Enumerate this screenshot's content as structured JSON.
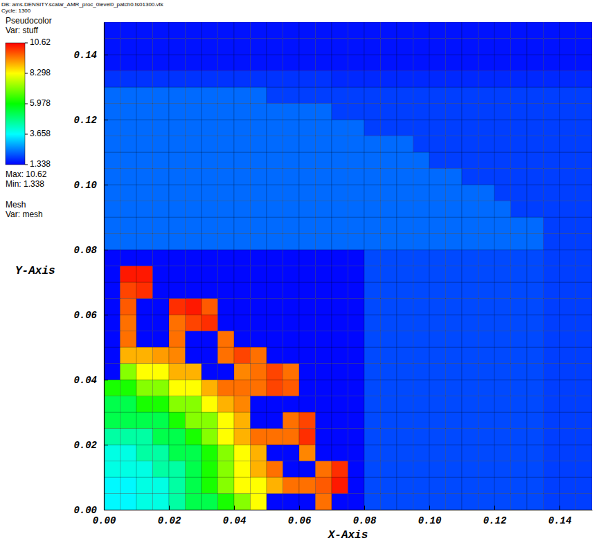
{
  "chart_data": {
    "type": "heatmap",
    "title": "DB: ams.DENSITY.scalar_AMR_proc_0level0_patch0.ts01300.vtk",
    "subtitle": "Cycle: 1300",
    "xlabel": "X-Axis",
    "ylabel": "Y-Axis",
    "xlim": [
      0,
      0.15
    ],
    "ylim": [
      0,
      0.15
    ],
    "xticks": [
      {
        "value": 0,
        "label": "0.00"
      },
      {
        "value": 0.02,
        "label": "0.02"
      },
      {
        "value": 0.04,
        "label": "0.04"
      },
      {
        "value": 0.06,
        "label": "0.06"
      },
      {
        "value": 0.08,
        "label": "0.08"
      },
      {
        "value": 0.1,
        "label": "0.10"
      },
      {
        "value": 0.12,
        "label": "0.12"
      },
      {
        "value": 0.14,
        "label": "0.14"
      }
    ],
    "yticks": [
      {
        "value": 0,
        "label": "0.00"
      },
      {
        "value": 0.02,
        "label": "0.02"
      },
      {
        "value": 0.04,
        "label": "0.04"
      },
      {
        "value": 0.06,
        "label": "0.06"
      },
      {
        "value": 0.08,
        "label": "0.08"
      },
      {
        "value": 0.1,
        "label": "0.10"
      },
      {
        "value": 0.12,
        "label": "0.12"
      },
      {
        "value": 0.14,
        "label": "0.14"
      }
    ],
    "colorbar": {
      "title": "Pseudocolor",
      "variable": "Var: stuff",
      "range": [
        1.338,
        10.62
      ],
      "ticks": [
        10.62,
        8.298,
        5.978,
        3.658,
        1.338
      ],
      "max_label": "Max: 10.62",
      "min_label": "Min: 1.338"
    },
    "mesh": {
      "title": "Mesh",
      "variable": "Var: mesh"
    },
    "x_edges": [
      0,
      0.005,
      0.01,
      0.015,
      0.02,
      0.025,
      0.03,
      0.035,
      0.04,
      0.045,
      0.05,
      0.055,
      0.06,
      0.065,
      0.07,
      0.075,
      0.08,
      0.085,
      0.09,
      0.095,
      0.1,
      0.105,
      0.11,
      0.115,
      0.12,
      0.125,
      0.13,
      0.135,
      0.14,
      0.145,
      0.15
    ],
    "y_edges": [
      0,
      0.005,
      0.01,
      0.015,
      0.02,
      0.025,
      0.03,
      0.035,
      0.04,
      0.045,
      0.05,
      0.055,
      0.06,
      0.065,
      0.07,
      0.075,
      0.08,
      0.085,
      0.09,
      0.095,
      0.1,
      0.105,
      0.11,
      0.115,
      0.12,
      0.125,
      0.13,
      0.135,
      0.14,
      0.145,
      0.15
    ],
    "z": [
      [
        3.6,
        3.6,
        3.9,
        3.9,
        4.5,
        5.3,
        5.3,
        6.2,
        7.2,
        8.3,
        1.4,
        1.4,
        1.4,
        9.6,
        1.4,
        1.4,
        2,
        2,
        2,
        2,
        2,
        2,
        2,
        2,
        2,
        2,
        2,
        1.9,
        1.9,
        1.9
      ],
      [
        3.6,
        3.6,
        3.9,
        3.9,
        4.5,
        5.3,
        6.2,
        7.2,
        8.3,
        8.3,
        9.0,
        9.6,
        9.6,
        9.8,
        10.4,
        1.4,
        2,
        2,
        2,
        2,
        2,
        2,
        2,
        2,
        2,
        2,
        2,
        1.9,
        1.9,
        1.9
      ],
      [
        3.9,
        3.9,
        3.9,
        4.5,
        4.5,
        5.3,
        6.2,
        7.2,
        8.3,
        9.0,
        9.6,
        1.4,
        1.4,
        9.6,
        10.2,
        1.4,
        2,
        2,
        2,
        2,
        2,
        2,
        2,
        2,
        2,
        2,
        2,
        1.9,
        1.9,
        1.9
      ],
      [
        3.9,
        3.9,
        4.5,
        4.5,
        5.3,
        5.3,
        6.2,
        7.2,
        8.3,
        9.0,
        1.4,
        1.4,
        9.4,
        1.4,
        1.4,
        1.4,
        2,
        2,
        2,
        2,
        2,
        2,
        2,
        2,
        2,
        2,
        2,
        1.9,
        1.9,
        1.9
      ],
      [
        4.5,
        4.5,
        4.5,
        5.3,
        5.3,
        6.2,
        7.2,
        8.3,
        9.0,
        9.6,
        9.6,
        9.6,
        10.2,
        1.4,
        1.4,
        1.4,
        2,
        2,
        2,
        2,
        2,
        2,
        2,
        2,
        2,
        2,
        2,
        1.9,
        1.9,
        1.9
      ],
      [
        5.3,
        5.3,
        5.3,
        5.3,
        6.2,
        7.2,
        7.2,
        8.3,
        9.0,
        1.4,
        1.4,
        9.6,
        10.0,
        1.4,
        1.4,
        1.4,
        2,
        2,
        2,
        2,
        2,
        2,
        2,
        2,
        2,
        2,
        2,
        1.9,
        1.9,
        1.9
      ],
      [
        5.3,
        5.3,
        6.2,
        6.2,
        7.2,
        7.2,
        8.3,
        9.0,
        9.4,
        1.4,
        1.4,
        1.4,
        1.4,
        1.4,
        1.4,
        1.4,
        2,
        2,
        2,
        2,
        2,
        2,
        2,
        2,
        2,
        2,
        2,
        1.9,
        1.9,
        1.9
      ],
      [
        6.2,
        6.2,
        7.2,
        7.2,
        8.3,
        8.3,
        9.0,
        9.6,
        9.6,
        9.6,
        10.0,
        9.8,
        1.4,
        1.4,
        1.4,
        1.4,
        2,
        2,
        2,
        2,
        2,
        2,
        2,
        2,
        2,
        2,
        2,
        1.9,
        1.9,
        1.9
      ],
      [
        1.4,
        7.2,
        8.3,
        8.3,
        9.0,
        9.0,
        1.4,
        1.4,
        9.4,
        9.6,
        10.0,
        9.6,
        1.4,
        1.4,
        1.4,
        1.4,
        2,
        2,
        2,
        2,
        2,
        2,
        2,
        2,
        2,
        2,
        2,
        1.9,
        1.9,
        1.9
      ],
      [
        1.4,
        9.0,
        9.0,
        9.2,
        9.4,
        1.4,
        1.4,
        9.6,
        10.0,
        9.6,
        1.4,
        1.4,
        1.4,
        1.4,
        1.4,
        1.4,
        2,
        2,
        2,
        2,
        2,
        2,
        2,
        2,
        2,
        2,
        2,
        1.9,
        1.9,
        1.9
      ],
      [
        1.4,
        9.6,
        1.4,
        1.4,
        9.6,
        1.4,
        1.4,
        9.6,
        1.4,
        1.4,
        1.4,
        1.4,
        1.4,
        1.4,
        1.4,
        1.4,
        2,
        2,
        2,
        2,
        2,
        2,
        2,
        2,
        2,
        2,
        2,
        1.9,
        1.9,
        1.9
      ],
      [
        1.4,
        9.6,
        1.4,
        1.4,
        9.6,
        10.0,
        10.2,
        1.4,
        1.4,
        1.4,
        1.4,
        1.4,
        1.4,
        1.4,
        1.4,
        1.4,
        2,
        2,
        2,
        2,
        2,
        2,
        2,
        2,
        2,
        2,
        2,
        1.9,
        1.9,
        1.9
      ],
      [
        1.4,
        9.8,
        1.4,
        1.4,
        10.2,
        10.4,
        9.8,
        1.4,
        1.4,
        1.4,
        1.4,
        1.4,
        1.4,
        1.4,
        1.4,
        1.4,
        2,
        2,
        2,
        2,
        2,
        2,
        2,
        2,
        2,
        2,
        2,
        1.9,
        1.9,
        1.9
      ],
      [
        1.4,
        10.0,
        10.2,
        1.4,
        1.4,
        1.4,
        1.4,
        1.4,
        1.4,
        1.4,
        1.4,
        1.4,
        1.4,
        1.4,
        1.4,
        1.4,
        2,
        2,
        2,
        2,
        2,
        2,
        2,
        2,
        2,
        2,
        2,
        1.9,
        1.9,
        1.9
      ],
      [
        1.4,
        10.4,
        10.4,
        1.4,
        1.4,
        1.4,
        1.4,
        1.4,
        1.4,
        1.4,
        1.4,
        1.4,
        1.4,
        1.4,
        1.4,
        1.4,
        2,
        2,
        2,
        2,
        2,
        2,
        2,
        2,
        2,
        2,
        2,
        1.9,
        1.9,
        1.9
      ],
      [
        1.4,
        1.4,
        1.4,
        1.4,
        1.4,
        1.4,
        1.4,
        1.4,
        1.4,
        1.4,
        1.4,
        1.4,
        1.4,
        1.4,
        1.4,
        1.4,
        2,
        2,
        2,
        2,
        2,
        2,
        2,
        2,
        2,
        2,
        2,
        1.9,
        1.9,
        1.9
      ],
      [
        2.3,
        2.3,
        2.3,
        2.3,
        2.3,
        2.3,
        2.3,
        2.3,
        2.3,
        2.3,
        2.3,
        2.3,
        2.3,
        2.3,
        2.3,
        2.3,
        2.3,
        2.3,
        2.3,
        2.3,
        2.3,
        2.3,
        2.3,
        2.3,
        2.3,
        2.3,
        2.3,
        1.9,
        1.9,
        1.9
      ],
      [
        2.3,
        2.3,
        2.3,
        2.3,
        2.3,
        2.3,
        2.3,
        2.3,
        2.3,
        2.3,
        2.3,
        2.3,
        2.3,
        2.3,
        2.3,
        2.3,
        2.3,
        2.3,
        2.3,
        2.3,
        2.3,
        2.3,
        2.3,
        2.3,
        2.3,
        2.3,
        2.3,
        1.9,
        1.9,
        1.9
      ],
      [
        2.3,
        2.3,
        2.3,
        2.3,
        2.3,
        2.3,
        2.3,
        2.3,
        2.3,
        2.3,
        2.3,
        2.3,
        2.3,
        2.3,
        2.3,
        2.3,
        2.3,
        2.3,
        2.3,
        2.3,
        2.3,
        2.3,
        2.3,
        2.3,
        2.3,
        1.9,
        1.9,
        1.9,
        1.9,
        1.9
      ],
      [
        2.3,
        2.3,
        2.3,
        2.3,
        2.3,
        2.3,
        2.3,
        2.3,
        2.3,
        2.3,
        2.3,
        2.3,
        2.3,
        2.3,
        2.3,
        2.3,
        2.3,
        2.3,
        2.3,
        2.3,
        2.3,
        2.3,
        2.3,
        2.3,
        1.9,
        1.9,
        1.9,
        1.9,
        1.9,
        1.9
      ],
      [
        2.3,
        2.3,
        2.3,
        2.3,
        2.3,
        2.3,
        2.3,
        2.3,
        2.3,
        2.3,
        2.3,
        2.3,
        2.3,
        2.3,
        2.3,
        2.3,
        2.3,
        2.3,
        2.3,
        2.3,
        2.3,
        2.3,
        1.9,
        1.9,
        1.9,
        1.9,
        1.9,
        1.9,
        1.9,
        1.9
      ],
      [
        2.3,
        2.3,
        2.3,
        2.3,
        2.3,
        2.3,
        2.3,
        2.3,
        2.3,
        2.3,
        2.3,
        2.3,
        2.3,
        2.3,
        2.3,
        2.3,
        2.3,
        2.3,
        2.3,
        2.3,
        1.9,
        1.9,
        1.9,
        1.9,
        1.9,
        1.9,
        1.9,
        1.9,
        1.9,
        1.9
      ],
      [
        2.3,
        2.3,
        2.3,
        2.3,
        2.3,
        2.3,
        2.3,
        2.3,
        2.3,
        2.3,
        2.3,
        2.3,
        2.3,
        2.3,
        2.3,
        2.3,
        2.3,
        2.3,
        2.3,
        1.9,
        1.9,
        1.9,
        1.9,
        1.9,
        1.9,
        1.9,
        1.9,
        1.9,
        1.9,
        1.9
      ],
      [
        2.3,
        2.3,
        2.3,
        2.3,
        2.3,
        2.3,
        2.3,
        2.3,
        2.3,
        2.3,
        2.3,
        2.3,
        2.3,
        2.3,
        2.3,
        2.3,
        1.9,
        1.9,
        1.9,
        1.9,
        1.9,
        1.9,
        1.9,
        1.9,
        1.9,
        1.9,
        1.9,
        1.9,
        1.9,
        1.9
      ],
      [
        2.3,
        2.3,
        2.3,
        2.3,
        2.3,
        2.3,
        2.3,
        2.3,
        2.3,
        2.3,
        2.3,
        2.3,
        2.3,
        2.3,
        1.9,
        1.9,
        1.9,
        1.9,
        1.9,
        1.9,
        1.9,
        1.9,
        1.9,
        1.9,
        1.9,
        1.9,
        1.9,
        1.9,
        1.9,
        1.9
      ],
      [
        2.3,
        2.3,
        2.3,
        2.3,
        2.3,
        2.3,
        2.3,
        2.3,
        2.3,
        2.3,
        1.9,
        1.9,
        1.9,
        1.9,
        1.9,
        1.9,
        1.9,
        1.9,
        1.9,
        1.9,
        1.9,
        1.9,
        1.9,
        1.9,
        1.9,
        1.9,
        1.9,
        1.9,
        1.9,
        1.9
      ],
      [
        1.8,
        1.8,
        1.8,
        1.8,
        1.8,
        1.8,
        1.8,
        1.8,
        1.8,
        1.8,
        1.8,
        1.8,
        1.8,
        1.8,
        1.7,
        1.7,
        1.7,
        1.7,
        1.7,
        1.7,
        1.7,
        1.7,
        1.7,
        1.7,
        1.7,
        1.7,
        1.7,
        1.7,
        1.7,
        1.7
      ],
      [
        1.5,
        1.5,
        1.5,
        1.5,
        1.5,
        1.5,
        1.5,
        1.5,
        1.5,
        1.5,
        1.5,
        1.5,
        1.5,
        1.5,
        1.5,
        1.5,
        1.5,
        1.5,
        1.5,
        1.5,
        1.5,
        1.5,
        1.5,
        1.5,
        1.5,
        1.5,
        1.5,
        1.5,
        1.5,
        1.5
      ],
      [
        1.5,
        1.5,
        1.5,
        1.5,
        1.5,
        1.5,
        1.5,
        1.5,
        1.5,
        1.5,
        1.5,
        1.5,
        1.5,
        1.5,
        1.5,
        1.5,
        1.5,
        1.5,
        1.5,
        1.5,
        1.5,
        1.5,
        1.5,
        1.5,
        1.5,
        1.5,
        1.5,
        1.5,
        1.5,
        1.5
      ],
      [
        1.5,
        1.5,
        1.5,
        1.5,
        1.5,
        1.5,
        1.5,
        1.5,
        1.5,
        1.5,
        1.5,
        1.5,
        1.5,
        1.5,
        1.5,
        1.5,
        1.5,
        1.5,
        1.5,
        1.5,
        1.5,
        1.5,
        1.5,
        1.5,
        1.5,
        1.5,
        1.5,
        1.5,
        1.5,
        1.5
      ]
    ]
  }
}
